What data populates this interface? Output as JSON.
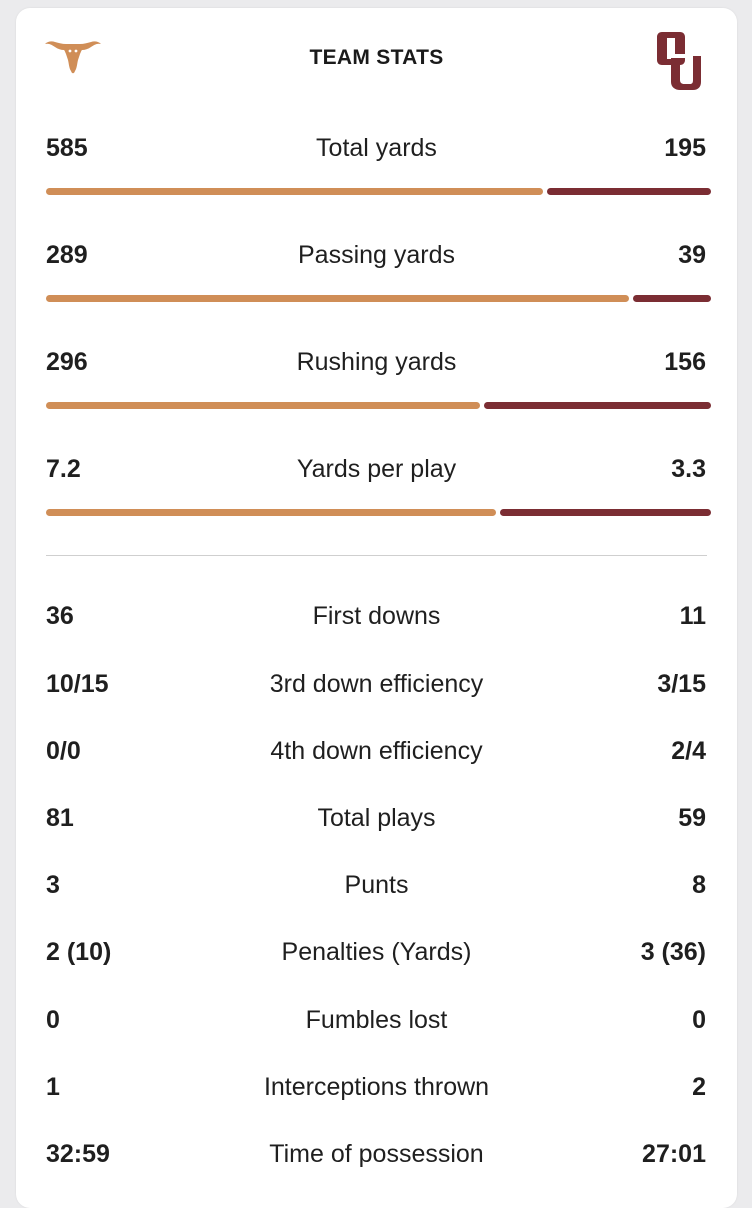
{
  "header": {
    "title": "TEAM STATS",
    "home_logo_icon": "texas-longhorn-icon",
    "away_logo_icon": "oklahoma-ou-icon"
  },
  "colors": {
    "home": "#d08e57",
    "away": "#7b2d33"
  },
  "bar_stats": [
    {
      "label": "Total yards",
      "home": "585",
      "away": "195",
      "home_share": 0.75
    },
    {
      "label": "Passing yards",
      "home": "289",
      "away": "39",
      "home_share": 0.88
    },
    {
      "label": "Rushing yards",
      "home": "296",
      "away": "156",
      "home_share": 0.655
    },
    {
      "label": "Yards per play",
      "home": "7.2",
      "away": "3.3",
      "home_share": 0.68
    }
  ],
  "stats": [
    {
      "label": "First downs",
      "home": "36",
      "away": "11"
    },
    {
      "label": "3rd down efficiency",
      "home": "10/15",
      "away": "3/15"
    },
    {
      "label": "4th down efficiency",
      "home": "0/0",
      "away": "2/4"
    },
    {
      "label": "Total plays",
      "home": "81",
      "away": "59"
    },
    {
      "label": "Punts",
      "home": "3",
      "away": "8"
    },
    {
      "label": "Penalties (Yards)",
      "home": "2 (10)",
      "away": "3 (36)"
    },
    {
      "label": "Fumbles lost",
      "home": "0",
      "away": "0"
    },
    {
      "label": "Interceptions thrown",
      "home": "1",
      "away": "2"
    },
    {
      "label": "Time of possession",
      "home": "32:59",
      "away": "27:01"
    }
  ]
}
